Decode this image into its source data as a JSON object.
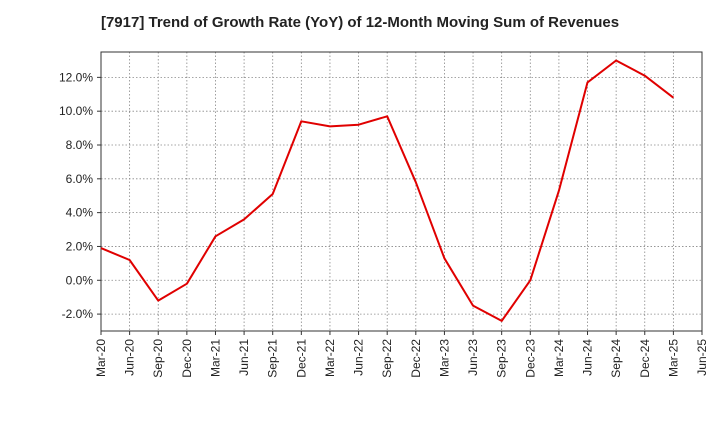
{
  "chart_data": {
    "type": "line",
    "title": "[7917]  Trend of Growth Rate (YoY) of 12-Month Moving Sum of Revenues",
    "xlabel": "",
    "ylabel": "",
    "ylim": [
      -3.0,
      13.5
    ],
    "y_ticks": [
      -2,
      0,
      2,
      4,
      6,
      8,
      10,
      12
    ],
    "y_tick_labels": [
      "-2.0%",
      "0.0%",
      "2.0%",
      "4.0%",
      "6.0%",
      "8.0%",
      "10.0%",
      "12.0%"
    ],
    "categories": [
      "Mar-20",
      "Jun-20",
      "Sep-20",
      "Dec-20",
      "Mar-21",
      "Jun-21",
      "Sep-21",
      "Dec-21",
      "Mar-22",
      "Jun-22",
      "Sep-22",
      "Dec-22",
      "Mar-23",
      "Jun-23",
      "Sep-23",
      "Dec-23",
      "Mar-24",
      "Jun-24",
      "Sep-24",
      "Dec-24",
      "Mar-25",
      "Jun-25"
    ],
    "series": [
      {
        "values": [
          1.9,
          1.2,
          -1.2,
          -0.2,
          2.6,
          3.6,
          5.1,
          9.4,
          9.1,
          9.2,
          9.7,
          5.8,
          1.3,
          -1.5,
          -2.4,
          0.0,
          5.3,
          11.7,
          13.0,
          12.1,
          10.8,
          null
        ],
        "color": "#e00000"
      }
    ],
    "grid": true,
    "grid_style": "dotted",
    "legend": "none"
  }
}
